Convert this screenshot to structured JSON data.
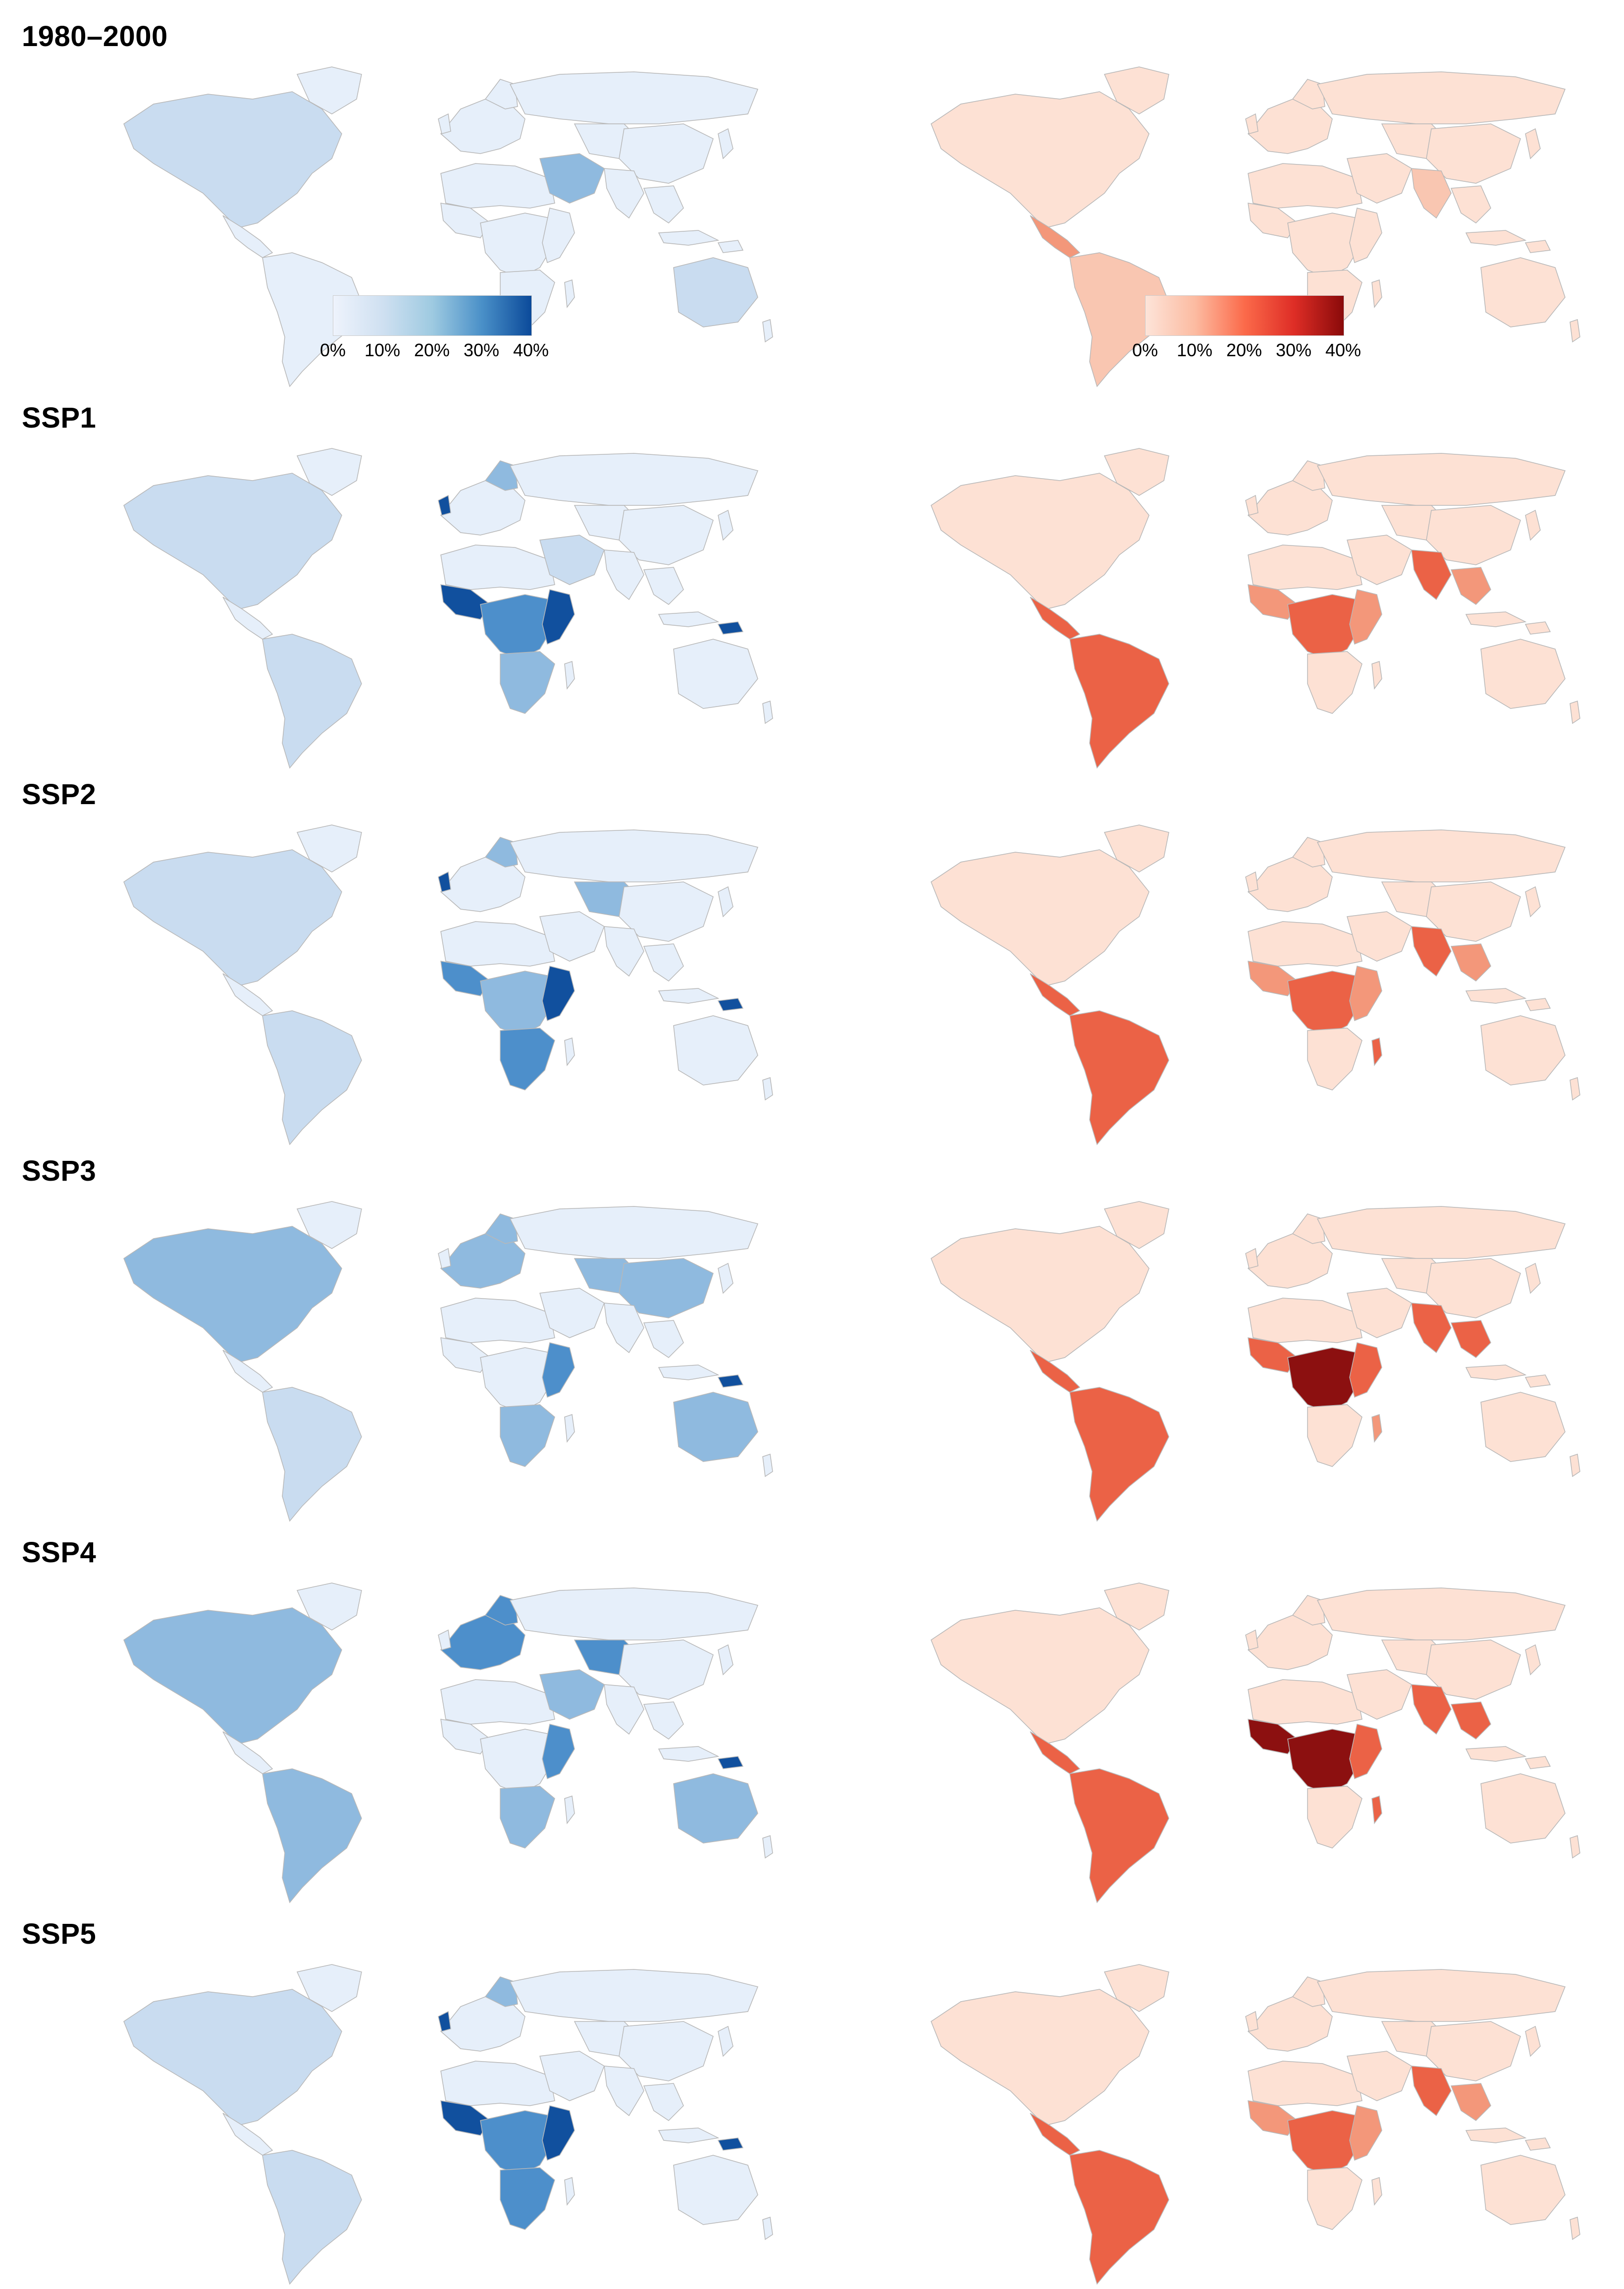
{
  "rows": [
    {
      "label": "1980–2000"
    },
    {
      "label": "SSP1"
    },
    {
      "label": "SSP2"
    },
    {
      "label": "SSP3"
    },
    {
      "label": "SSP4"
    },
    {
      "label": "SSP5"
    }
  ],
  "legend": {
    "ticks": [
      "0%",
      "10%",
      "20%",
      "30%",
      "40%"
    ],
    "range": [
      0,
      40
    ],
    "blue_scale": [
      "#eef3fc",
      "#cfe0f1",
      "#9ecae1",
      "#4a90c8",
      "#0b4a9a"
    ],
    "red_scale": [
      "#fde4d9",
      "#fcbba1",
      "#fb6a4a",
      "#de2d26",
      "#8a0a0a"
    ]
  },
  "colors": {
    "blue_base": "#e6effa",
    "blue_light": "#c9dcf0",
    "blue_mid": "#8fbadf",
    "blue_strong": "#4d8fcb",
    "blue_dark": "#11509e",
    "red_base": "#fde1d4",
    "red_light": "#f9c6b1",
    "red_mid": "#f3977a",
    "red_strong": "#eb6246",
    "red_dark": "#8c1010",
    "country_border": "#b8b8b8"
  },
  "maps": [
    {
      "row": "1980–2000",
      "left_scale": "blue",
      "right_scale": "red"
    },
    {
      "row": "SSP1",
      "left_scale": "blue",
      "right_scale": "red"
    },
    {
      "row": "SSP2",
      "left_scale": "blue",
      "right_scale": "red"
    },
    {
      "row": "SSP3",
      "left_scale": "blue",
      "right_scale": "red"
    },
    {
      "row": "SSP4",
      "left_scale": "blue",
      "right_scale": "red"
    },
    {
      "row": "SSP5",
      "left_scale": "blue",
      "right_scale": "red"
    }
  ]
}
